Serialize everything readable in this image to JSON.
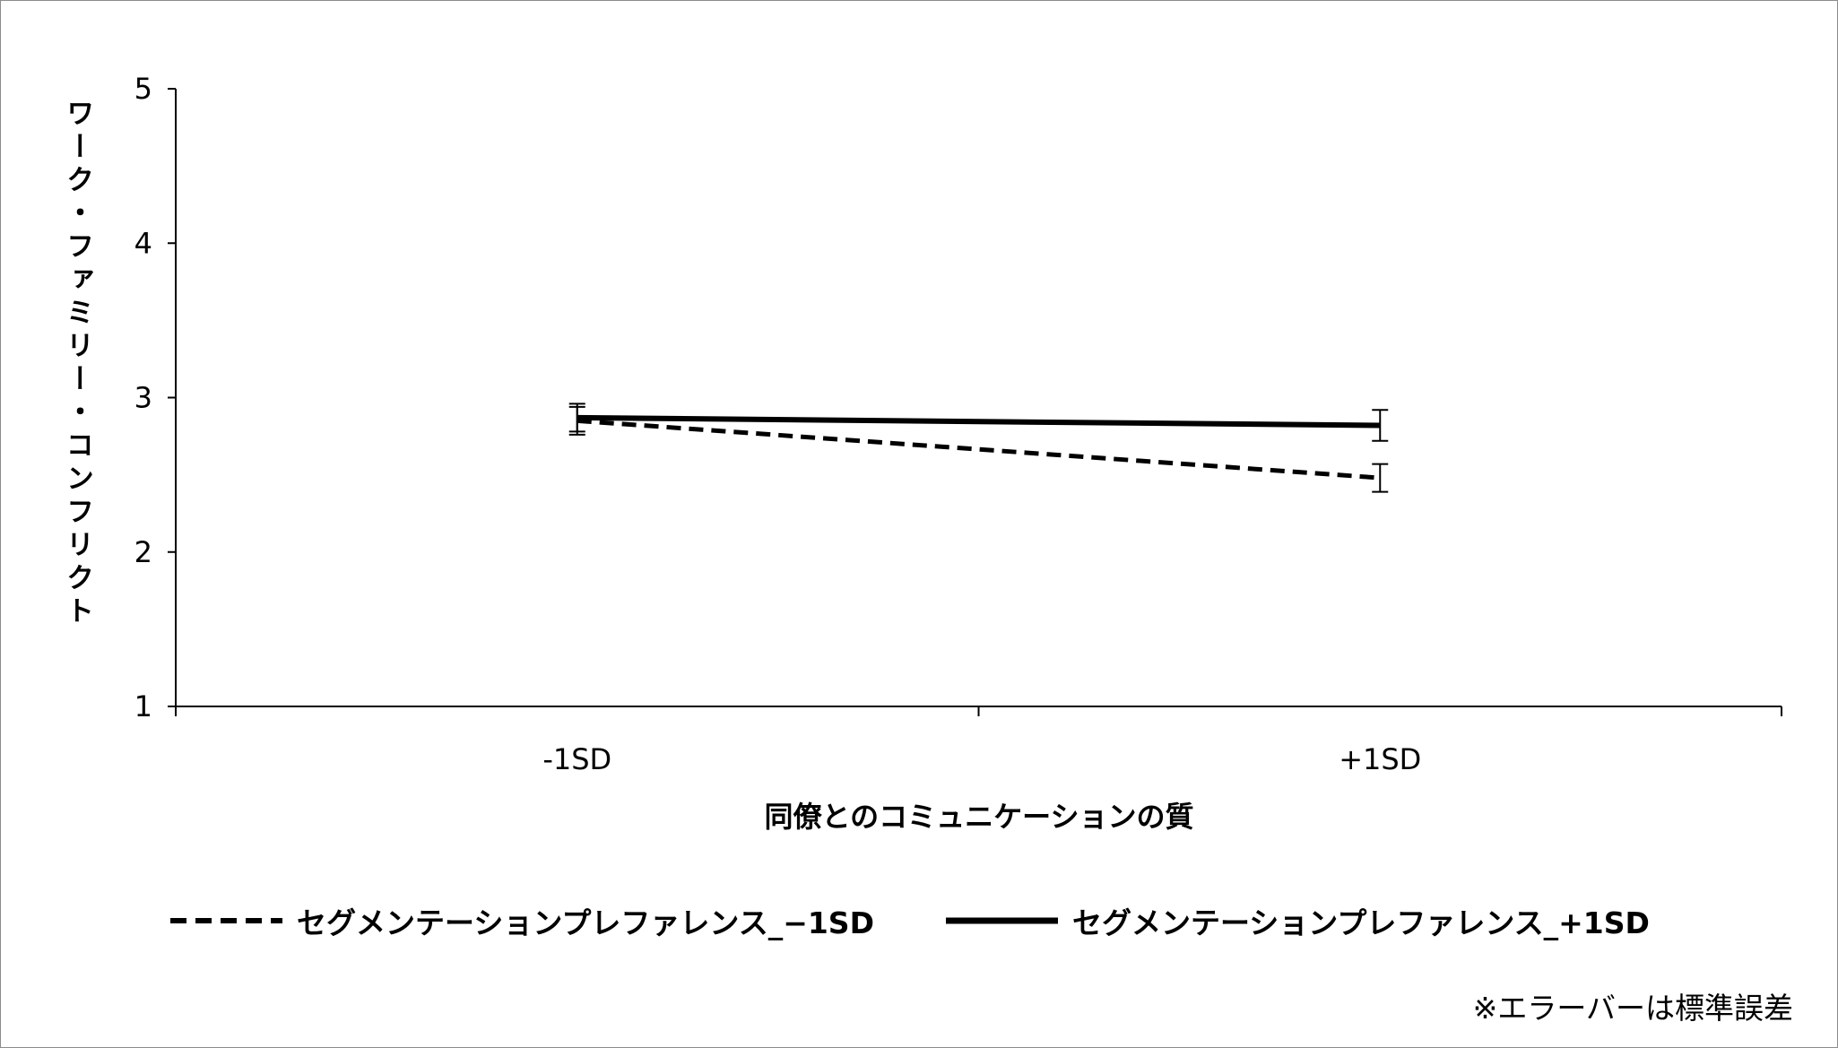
{
  "chart_data": {
    "type": "line",
    "categories": [
      "-1SD",
      "+1SD"
    ],
    "xlabel": "同僚とのコミュニケーションの質",
    "ylabel": "ワーク・ファミリー・コンフリクト",
    "ylim": [
      1,
      5
    ],
    "yticks": [
      "1",
      "2",
      "3",
      "4",
      "5"
    ],
    "grid": false,
    "legend_position": "bottom",
    "series": [
      {
        "name": "セグメンテーションプレファレンス_−1SD",
        "values": [
          2.85,
          2.48
        ],
        "errors": [
          0.09,
          0.09
        ],
        "line_style": "dashed",
        "color": "#000000"
      },
      {
        "name": "セグメンテーションプレファレンス_+1SD",
        "values": [
          2.87,
          2.82
        ],
        "errors": [
          0.09,
          0.1
        ],
        "line_style": "solid",
        "color": "#000000"
      }
    ],
    "note": "※エラーバーは標準誤差"
  }
}
